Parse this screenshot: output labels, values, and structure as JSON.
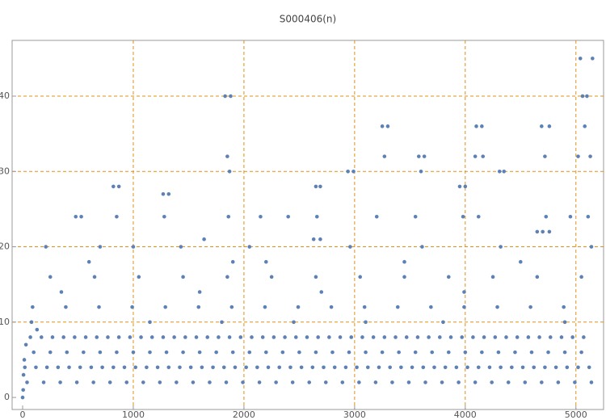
{
  "chart_data": {
    "type": "scatter",
    "title": "S000406(n)",
    "color": "#5e81b5",
    "xlim": [
      -95,
      5250
    ],
    "ylim": [
      -1.6,
      47.4
    ],
    "xticks": [
      0,
      1000,
      2000,
      3000,
      4000,
      5000
    ],
    "yticks": [
      0,
      10,
      20,
      30,
      40
    ],
    "xgrid": [
      1000,
      2000,
      3000,
      4000,
      5000
    ],
    "ygrid": [
      10,
      20,
      30,
      40
    ],
    "grid_color": "#e0901a",
    "series": [
      {
        "x": [
          20,
          120,
          220,
          320,
          420,
          520,
          620,
          720,
          820,
          920,
          1020,
          1120,
          1220,
          1320,
          1420,
          1520,
          1620,
          1720,
          1820,
          1920,
          2020,
          2120,
          2220,
          2320,
          2420,
          2520,
          2620,
          2720,
          2820,
          2920,
          3020,
          3120,
          3220,
          3320,
          3420,
          3520,
          3620,
          3720,
          3820,
          3920,
          4020,
          4120,
          4220,
          4320,
          4420,
          4520,
          4620,
          4720,
          4820,
          4920,
          5020,
          5120
        ],
        "values": [
          4,
          4,
          4,
          4,
          4,
          4,
          4,
          4,
          4,
          4,
          4,
          4,
          4,
          4,
          4,
          4,
          4,
          4,
          4,
          4,
          4,
          4,
          4,
          4,
          4,
          4,
          4,
          4,
          4,
          4,
          4,
          4,
          4,
          4,
          4,
          4,
          4,
          4,
          4,
          4,
          4,
          4,
          4,
          4,
          4,
          4,
          4,
          4,
          4,
          4,
          4,
          4
        ]
      },
      {
        "x": [
          70,
          170,
          270,
          370,
          470,
          570,
          670,
          770,
          870,
          970,
          1070,
          1170,
          1270,
          1370,
          1470,
          1570,
          1670,
          1770,
          1870,
          1970,
          2070,
          2170,
          2270,
          2370,
          2470,
          2570,
          2670,
          2770,
          2870,
          2970,
          3070,
          3170,
          3270,
          3370,
          3470,
          3570,
          3670,
          3770,
          3870,
          3970,
          4070,
          4170,
          4270,
          4370,
          4470,
          4570,
          4670,
          4770,
          4870,
          4970,
          5070
        ],
        "values": [
          8,
          8,
          8,
          8,
          8,
          8,
          8,
          8,
          8,
          8,
          8,
          8,
          8,
          8,
          8,
          8,
          8,
          8,
          8,
          8,
          8,
          8,
          8,
          8,
          8,
          8,
          8,
          8,
          8,
          8,
          8,
          8,
          8,
          8,
          8,
          8,
          8,
          8,
          8,
          8,
          8,
          8,
          8,
          8,
          8,
          8,
          8,
          8,
          8,
          8,
          8
        ]
      },
      {
        "x": [
          40,
          190,
          340,
          490,
          640,
          790,
          940,
          1090,
          1240,
          1390,
          1540,
          1690,
          1840,
          1990,
          2140,
          2290,
          2440,
          2590,
          2740,
          2890,
          3040,
          3190,
          3340,
          3490,
          3640,
          3790,
          3940,
          4090,
          4240,
          4390,
          4540,
          4690,
          4840,
          4990,
          5140
        ],
        "values": [
          2,
          2,
          2,
          2,
          2,
          2,
          2,
          2,
          2,
          2,
          2,
          2,
          2,
          2,
          2,
          2,
          2,
          2,
          2,
          2,
          2,
          2,
          2,
          2,
          2,
          2,
          2,
          2,
          2,
          2,
          2,
          2,
          2,
          2,
          2
        ]
      },
      {
        "x": [
          100,
          250,
          400,
          550,
          700,
          850,
          1000,
          1150,
          1300,
          1450,
          1600,
          1750,
          1900,
          2050,
          2200,
          2350,
          2500,
          2650,
          2800,
          2950,
          3100,
          3250,
          3400,
          3550,
          3700,
          3850,
          4000,
          4150,
          4300,
          4450,
          4600,
          4750,
          4900,
          5050
        ],
        "values": [
          6,
          6,
          6,
          6,
          6,
          6,
          6,
          6,
          6,
          6,
          6,
          6,
          6,
          6,
          6,
          6,
          6,
          6,
          6,
          6,
          6,
          6,
          6,
          6,
          6,
          6,
          6,
          6,
          6,
          6,
          6,
          6,
          6,
          6
        ]
      },
      {
        "x": [
          90,
          390,
          690,
          990,
          1290,
          1590,
          1890,
          2190,
          2490,
          2790,
          3090,
          3390,
          3690,
          3990,
          4290,
          4590,
          4890
        ],
        "values": [
          12,
          12,
          12,
          12,
          12,
          12,
          12,
          12,
          12,
          12,
          12,
          12,
          12,
          12,
          12,
          12,
          12
        ]
      },
      {
        "x": [
          250,
          650,
          1050,
          1450,
          1850,
          2250,
          2650,
          3050,
          3450,
          3850,
          4250,
          4650,
          5050
        ],
        "values": [
          16,
          16,
          16,
          16,
          16,
          16,
          16,
          16,
          16,
          16,
          16,
          16,
          16
        ]
      },
      {
        "x": [
          0,
          5,
          8,
          15,
          30,
          80,
          130,
          210,
          480,
          530,
          820,
          870,
          850,
          1000,
          1270,
          1320,
          1280,
          1430,
          1640,
          1830,
          1880,
          1850,
          1870,
          1860,
          1900,
          2150,
          2400,
          2630,
          2690,
          2650,
          2690,
          2660,
          2940,
          2990,
          2960,
          3250,
          3300,
          3270,
          3200,
          3580,
          3630,
          3600,
          3610,
          3950,
          4000,
          3980,
          3990,
          4100,
          4150,
          4090,
          4160,
          4120,
          4310,
          4350,
          4320,
          4650,
          4700,
          4760,
          4690,
          4760,
          4720,
          4730,
          5040,
          5150,
          5060,
          5100,
          5020,
          5080,
          5130,
          5140,
          5110,
          350,
          1150,
          2200,
          2450,
          3100,
          3450,
          3800,
          4500,
          4900,
          1600,
          2700,
          4950,
          600,
          1800,
          3550,
          2050,
          700
        ],
        "values": [
          0,
          1,
          3,
          5,
          7,
          10,
          9,
          20,
          24,
          24,
          28,
          28,
          24,
          20,
          27,
          27,
          24,
          20,
          21,
          40,
          40,
          32,
          30,
          24,
          18,
          24,
          24,
          21,
          21,
          28,
          28,
          24,
          30,
          30,
          20,
          36,
          36,
          32,
          24,
          32,
          32,
          30,
          20,
          28,
          28,
          24,
          14,
          36,
          36,
          32,
          32,
          24,
          30,
          30,
          20,
          22,
          22,
          22,
          36,
          36,
          32,
          24,
          45,
          45,
          40,
          40,
          32,
          36,
          32,
          20,
          24,
          14,
          10,
          18,
          10,
          10,
          18,
          10,
          18,
          10,
          14,
          14,
          24,
          18,
          10,
          24,
          20,
          20
        ]
      }
    ]
  }
}
